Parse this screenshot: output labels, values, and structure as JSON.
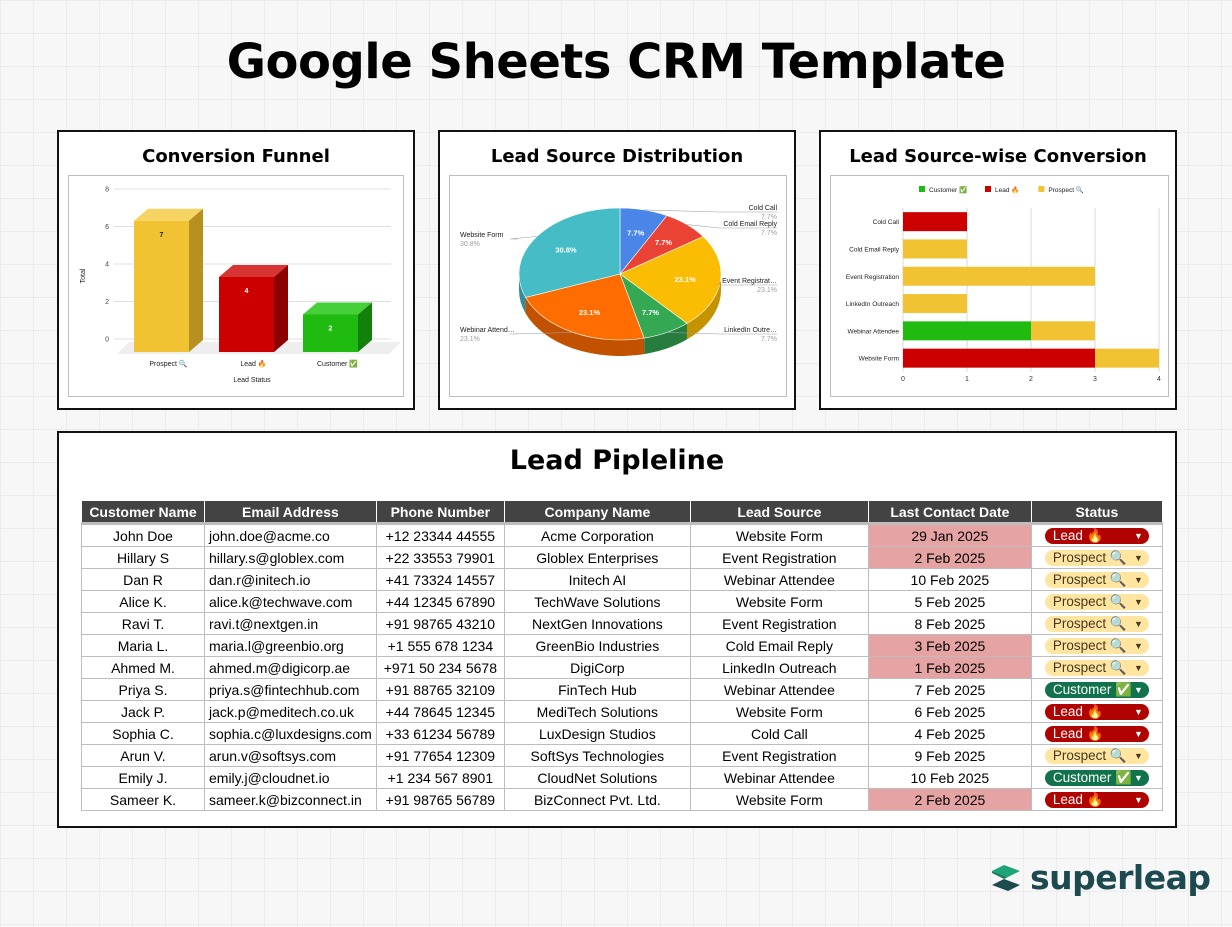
{
  "page_title": "Google Sheets CRM Template",
  "colors": {
    "prospect_bar": "#f1c232",
    "lead_bar": "#cc0000",
    "customer_bar": "#1fbb11",
    "pie_blue": "#4a86e8",
    "pie_red": "#ea4335",
    "pie_yellow": "#fbbc04",
    "pie_green": "#34a853",
    "pie_orange": "#ff6d01",
    "pie_teal": "#46bdc6",
    "header_bg": "#434343",
    "highlight_red": "#e6a3a3",
    "logo_teal": "#1c4a4f",
    "logo_green": "#1fa47a"
  },
  "panels": {
    "funnel_title": "Conversion Funnel",
    "distribution_title": "Lead Source Distribution",
    "conversion_title": "Lead Source-wise Conversion"
  },
  "chart_data": [
    {
      "type": "bar",
      "title": "Conversion Funnel",
      "xlabel": "Lead Status",
      "ylabel": "Total",
      "categories": [
        "Prospect 🔍",
        "Lead 🔥",
        "Customer ✅"
      ],
      "values": [
        7,
        4,
        2
      ],
      "ylim": [
        0,
        8
      ],
      "yticks": [
        "0",
        "2",
        "4",
        "6",
        "8"
      ],
      "grid": true
    },
    {
      "type": "pie",
      "title": "Lead Source Distribution",
      "slices": [
        {
          "label": "Cold Call",
          "value": 7.7,
          "label_text": "7.7%"
        },
        {
          "label": "Cold Email Reply",
          "value": 7.7,
          "label_text": "7.7%"
        },
        {
          "label": "Event Registrat…",
          "value": 23.1,
          "label_text": "23.1%"
        },
        {
          "label": "LinkedIn Outre…",
          "value": 7.7,
          "label_text": "7.7%"
        },
        {
          "label": "Webinar Attend…",
          "value": 23.1,
          "label_text": "23.1%"
        },
        {
          "label": "Website Form",
          "value": 30.8,
          "label_text": "30.8%"
        }
      ]
    },
    {
      "type": "bar",
      "orientation": "horizontal",
      "stacked": true,
      "title": "Lead Source-wise Conversion",
      "categories": [
        "Cold Call",
        "Cold Email Reply",
        "Event Registration",
        "LinkedIn Outreach",
        "Webinar Attendee",
        "Website Form"
      ],
      "series": [
        {
          "name": "Customer ✅",
          "values": [
            0,
            0,
            0,
            0,
            2,
            0
          ]
        },
        {
          "name": "Lead 🔥",
          "values": [
            1,
            0,
            0,
            0,
            0,
            3
          ]
        },
        {
          "name": "Prospect 🔍",
          "values": [
            0,
            1,
            3,
            1,
            1,
            1
          ]
        }
      ],
      "xlim": [
        0,
        4
      ],
      "xticks": [
        "0",
        "1",
        "2",
        "3",
        "4"
      ],
      "legend": "top",
      "grid": true
    }
  ],
  "pipeline": {
    "title": "Lead Pipleline",
    "headers": [
      "Customer Name",
      "Email Address",
      "Phone Number",
      "Company Name",
      "Lead Source",
      "Last Contact Date",
      "Status"
    ],
    "rows": [
      {
        "name": "John Doe",
        "email": "john.doe@acme.co",
        "phone": "+12 23344 44555",
        "company": "Acme Corporation",
        "source": "Website Form",
        "date": "29 Jan 2025",
        "date_highlight": true,
        "status": "Lead 🔥",
        "status_type": "lead"
      },
      {
        "name": "Hillary S",
        "email": "hillary.s@globlex.com",
        "phone": "+22 33553 79901",
        "company": "Globlex Enterprises",
        "source": "Event Registration",
        "date": "2 Feb 2025",
        "date_highlight": true,
        "status": "Prospect 🔍",
        "status_type": "prospect"
      },
      {
        "name": "Dan R",
        "email": "dan.r@initech.io",
        "phone": "+41 73324 14557",
        "company": "Initech AI",
        "source": "Webinar Attendee",
        "date": "10 Feb 2025",
        "date_highlight": false,
        "status": "Prospect 🔍",
        "status_type": "prospect"
      },
      {
        "name": "Alice K.",
        "email": "alice.k@techwave.com",
        "phone": "+44 12345 67890",
        "company": "TechWave Solutions",
        "source": "Website Form",
        "date": "5 Feb 2025",
        "date_highlight": false,
        "status": "Prospect 🔍",
        "status_type": "prospect"
      },
      {
        "name": "Ravi T.",
        "email": "ravi.t@nextgen.in",
        "phone": "+91 98765 43210",
        "company": "NextGen Innovations",
        "source": "Event Registration",
        "date": "8 Feb 2025",
        "date_highlight": false,
        "status": "Prospect 🔍",
        "status_type": "prospect"
      },
      {
        "name": "Maria L.",
        "email": "maria.l@greenbio.org",
        "phone": "+1 555 678 1234",
        "company": "GreenBio Industries",
        "source": "Cold Email Reply",
        "date": "3 Feb 2025",
        "date_highlight": true,
        "status": "Prospect 🔍",
        "status_type": "prospect"
      },
      {
        "name": "Ahmed M.",
        "email": "ahmed.m@digicorp.ae",
        "phone": "+971 50 234 5678",
        "company": "DigiCorp",
        "source": "LinkedIn Outreach",
        "date": "1 Feb 2025",
        "date_highlight": true,
        "status": "Prospect 🔍",
        "status_type": "prospect"
      },
      {
        "name": "Priya S.",
        "email": "priya.s@fintechhub.com",
        "phone": "+91 88765 32109",
        "company": "FinTech Hub",
        "source": "Webinar Attendee",
        "date": "7 Feb 2025",
        "date_highlight": false,
        "status": "Customer ✅",
        "status_type": "customer"
      },
      {
        "name": "Jack P.",
        "email": "jack.p@meditech.co.uk",
        "phone": "+44 78645 12345",
        "company": "MediTech Solutions",
        "source": "Website Form",
        "date": "6 Feb 2025",
        "date_highlight": false,
        "status": "Lead 🔥",
        "status_type": "lead"
      },
      {
        "name": "Sophia C.",
        "email": "sophia.c@luxdesigns.com",
        "phone": "+33 61234 56789",
        "company": "LuxDesign Studios",
        "source": "Cold Call",
        "date": "4 Feb 2025",
        "date_highlight": false,
        "status": "Lead 🔥",
        "status_type": "lead"
      },
      {
        "name": "Arun V.",
        "email": "arun.v@softsys.com",
        "phone": "+91 77654 12309",
        "company": "SoftSys Technologies",
        "source": "Event Registration",
        "date": "9 Feb 2025",
        "date_highlight": false,
        "status": "Prospect 🔍",
        "status_type": "prospect"
      },
      {
        "name": "Emily J.",
        "email": "emily.j@cloudnet.io",
        "phone": "+1 234 567 8901",
        "company": "CloudNet Solutions",
        "source": "Webinar Attendee",
        "date": "10 Feb 2025",
        "date_highlight": false,
        "status": "Customer ✅",
        "status_type": "customer"
      },
      {
        "name": "Sameer K.",
        "email": "sameer.k@bizconnect.in",
        "phone": "+91 98765 56789",
        "company": "BizConnect Pvt. Ltd.",
        "source": "Website Form",
        "date": "2 Feb 2025",
        "date_highlight": true,
        "status": "Lead 🔥",
        "status_type": "lead"
      }
    ]
  },
  "logo": {
    "text": "superleap",
    "icon": "superleap-logo-icon"
  }
}
